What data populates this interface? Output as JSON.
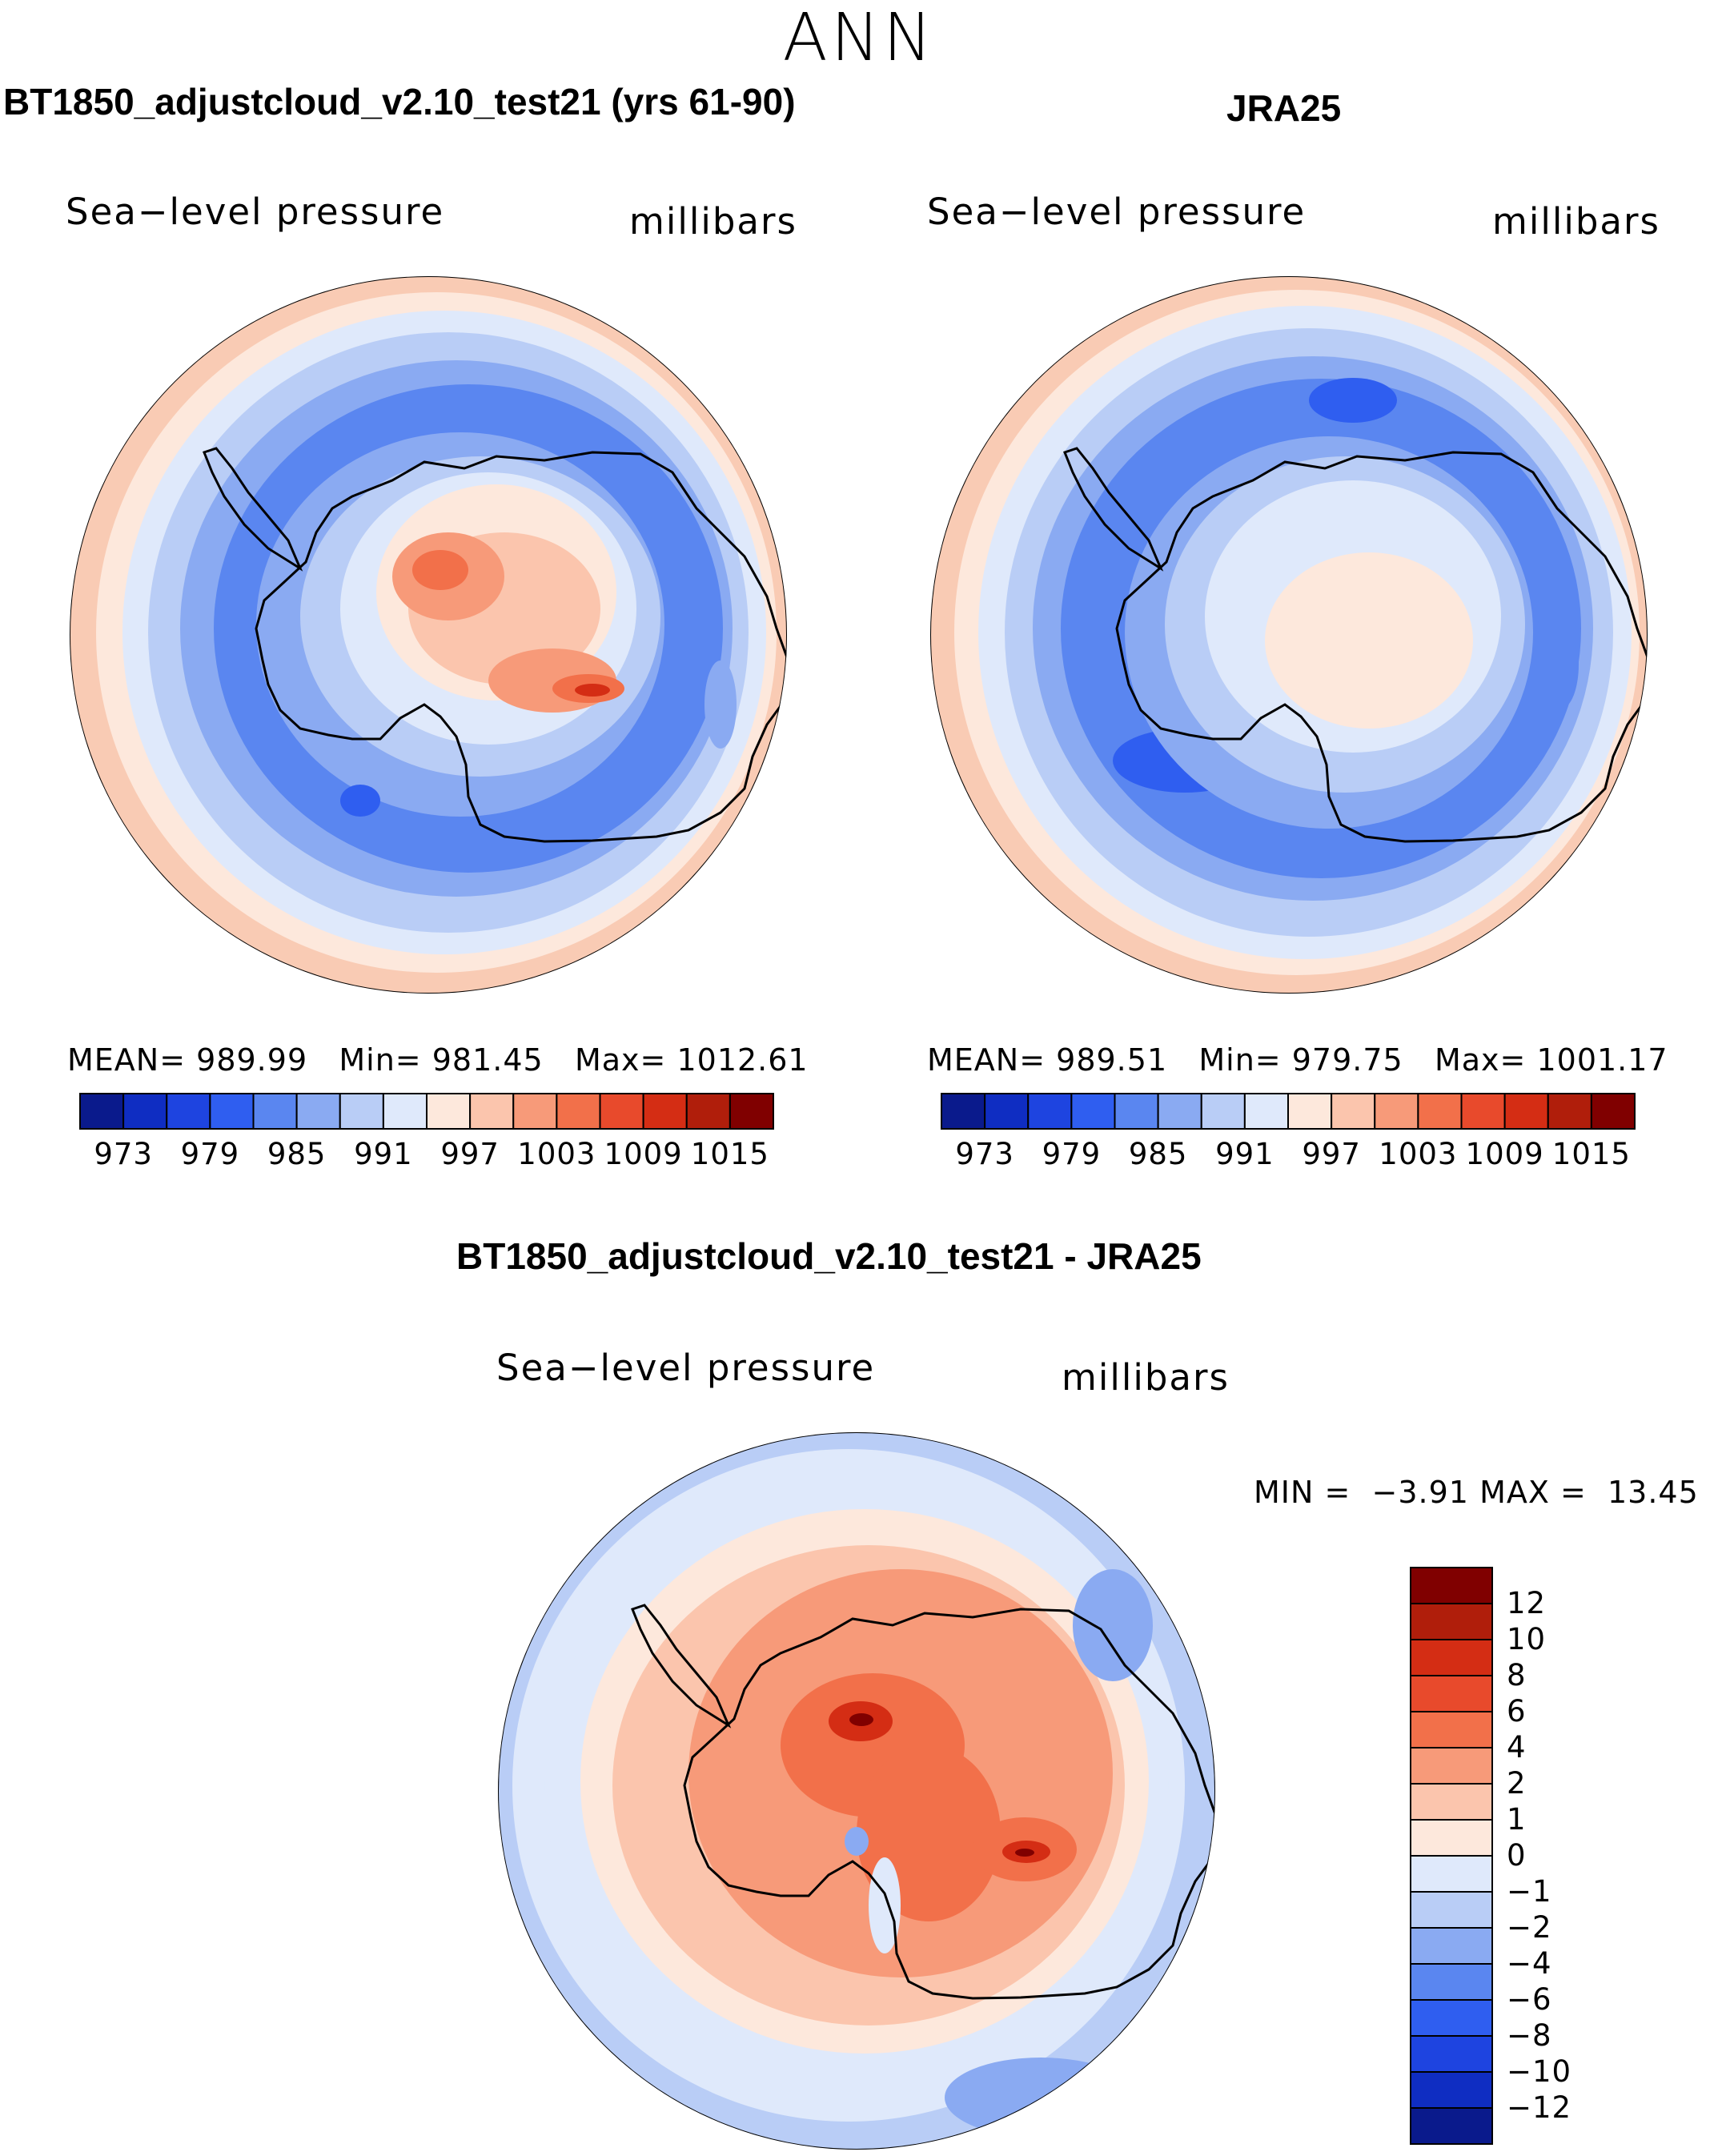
{
  "season": "ANN",
  "panels": [
    {
      "title": "BT1850_adjustcloud_v2.10_test21 (yrs 61-90)",
      "variable": "Sea−level pressure",
      "units": "millibars",
      "stats": {
        "mean_label": "MEAN=",
        "mean": "989.99",
        "min_label": "Min=",
        "min": "981.45",
        "max_label": "Max=",
        "max": "1012.61"
      }
    },
    {
      "title": "JRA25",
      "variable": "Sea−level pressure",
      "units": "millibars",
      "stats": {
        "mean_label": "MEAN=",
        "mean": "989.51",
        "min_label": "Min=",
        "min": "979.75",
        "max_label": "Max=",
        "max": "1001.17"
      }
    },
    {
      "title": "BT1850_adjustcloud_v2.10_test21 - JRA25",
      "variable": "Sea−level pressure",
      "units": "millibars",
      "stats": {
        "min_label": "MIN =",
        "min": "−3.91",
        "max_label": "MAX =",
        "max": "13.45"
      }
    }
  ],
  "colorbar_abs": {
    "ticks": [
      "973",
      "979",
      "985",
      "991",
      "997",
      "1003",
      "1009",
      "1015"
    ],
    "colors": [
      "#0a1a8c",
      "#0f2dc2",
      "#1e44e0",
      "#2f5ef0",
      "#5a86f0",
      "#8aaaf2",
      "#b9cdf6",
      "#dfe9fb",
      "#fde8dc",
      "#fbc5ad",
      "#f79a79",
      "#f2704a",
      "#e84a2c",
      "#d42d14",
      "#b01e0b",
      "#800000"
    ]
  },
  "colorbar_diff": {
    "labels": [
      "12",
      "10",
      "8",
      "6",
      "4",
      "2",
      "1",
      "0",
      "−1",
      "−2",
      "−4",
      "−6",
      "−8",
      "−10",
      "−12"
    ],
    "colors": [
      "#800000",
      "#b01e0b",
      "#d42d14",
      "#e84a2c",
      "#f2704a",
      "#f79a79",
      "#fbc5ad",
      "#fde8dc",
      "#dfe9fb",
      "#b9cdf6",
      "#8aaaf2",
      "#5a86f0",
      "#2f5ef0",
      "#1e44e0",
      "#0f2dc2",
      "#0a1a8c"
    ]
  },
  "colors": {
    "ocean_outer_abs": "#f9cbb4",
    "ocean_pale": "#dfe9fb",
    "ocean_light": "#b9cdf6",
    "ocean_mid": "#8aaaf2",
    "ocean_deep": "#5a86f0",
    "ocean_deeper": "#2f5ef0",
    "land_warm1": "#fde8dc",
    "land_warm2": "#fbc5ad",
    "land_warm3": "#f79a79",
    "land_warm4": "#f2704a",
    "land_warm5": "#d42d14",
    "land_warm6": "#800000"
  }
}
